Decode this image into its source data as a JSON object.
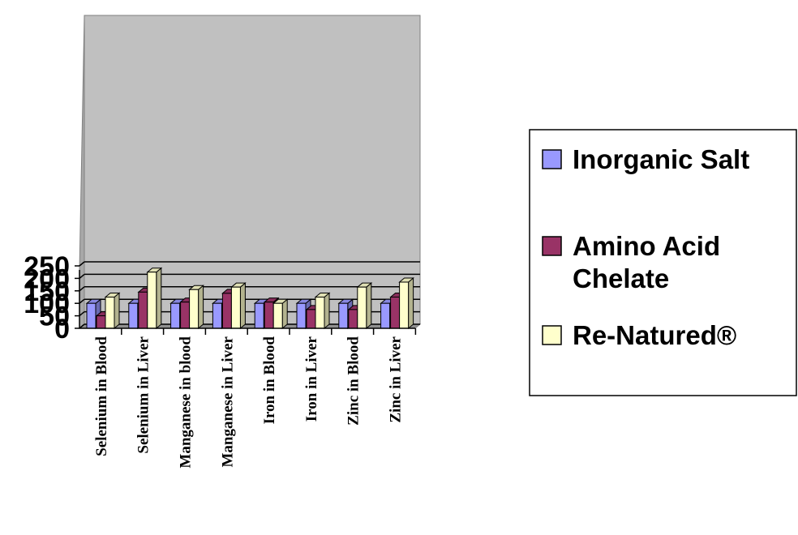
{
  "chart_data": {
    "type": "bar",
    "categories": [
      "Selenium in Blood",
      "Selenium in Liver",
      "Manganese in blood",
      "Manganese in Liver",
      "Iron in Blood",
      "Iron in Liver",
      "Zinc in Blood",
      "Zinc in Liver"
    ],
    "series": [
      {
        "name": "Inorganic Salt",
        "color": "#9999ff",
        "values": [
          100,
          100,
          100,
          100,
          100,
          100,
          100,
          100
        ]
      },
      {
        "name": "Amino Acid Chelate",
        "color": "#993366",
        "values": [
          50,
          145,
          105,
          140,
          105,
          75,
          75,
          125
        ]
      },
      {
        "name": "Re-Natured®",
        "color": "#ffffcc",
        "values": [
          125,
          225,
          155,
          165,
          100,
          125,
          165,
          185
        ]
      }
    ],
    "title": "",
    "xlabel": "",
    "ylabel": "",
    "ylim": [
      0,
      250
    ],
    "yticks": [
      0,
      50,
      100,
      150,
      200,
      250
    ],
    "grid": true,
    "legend": "right",
    "plot_background": "#c0c0c0",
    "style": "3d-bar"
  },
  "legend": {
    "entries": [
      {
        "lines": [
          "Inorganic Salt"
        ]
      },
      {
        "lines": [
          "Amino Acid",
          "Chelate"
        ]
      },
      {
        "lines": [
          "Re-Natured®"
        ]
      }
    ]
  }
}
